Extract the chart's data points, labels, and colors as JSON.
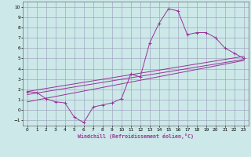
{
  "xlabel": "Windchill (Refroidissement éolien,°C)",
  "bg_color": "#cce8e8",
  "grid_color": "#9999bb",
  "line_color": "#993399",
  "xlim": [
    -0.5,
    23.5
  ],
  "ylim": [
    -1.5,
    10.5
  ],
  "xticks": [
    0,
    1,
    2,
    3,
    4,
    5,
    6,
    7,
    8,
    9,
    10,
    11,
    12,
    13,
    14,
    15,
    16,
    17,
    18,
    19,
    20,
    21,
    22,
    23
  ],
  "yticks": [
    -1,
    0,
    1,
    2,
    3,
    4,
    5,
    6,
    7,
    8,
    9,
    10
  ],
  "curve1_x": [
    0,
    1,
    2,
    3,
    4,
    5,
    6,
    7,
    8,
    9,
    10,
    11,
    12,
    13,
    14,
    15,
    16,
    17,
    18,
    19,
    20,
    21,
    22,
    23
  ],
  "curve1_y": [
    1.8,
    1.7,
    1.1,
    0.8,
    0.7,
    -0.7,
    -1.2,
    0.3,
    0.5,
    0.7,
    1.1,
    3.5,
    3.2,
    6.5,
    8.4,
    9.8,
    9.6,
    7.3,
    7.5,
    7.5,
    7.0,
    6.0,
    5.5,
    5.0
  ],
  "line1_x": [
    0,
    23
  ],
  "line1_y": [
    1.8,
    5.2
  ],
  "line2_x": [
    0,
    23
  ],
  "line2_y": [
    1.5,
    4.9
  ],
  "line3_x": [
    0,
    23
  ],
  "line3_y": [
    0.8,
    4.8
  ]
}
